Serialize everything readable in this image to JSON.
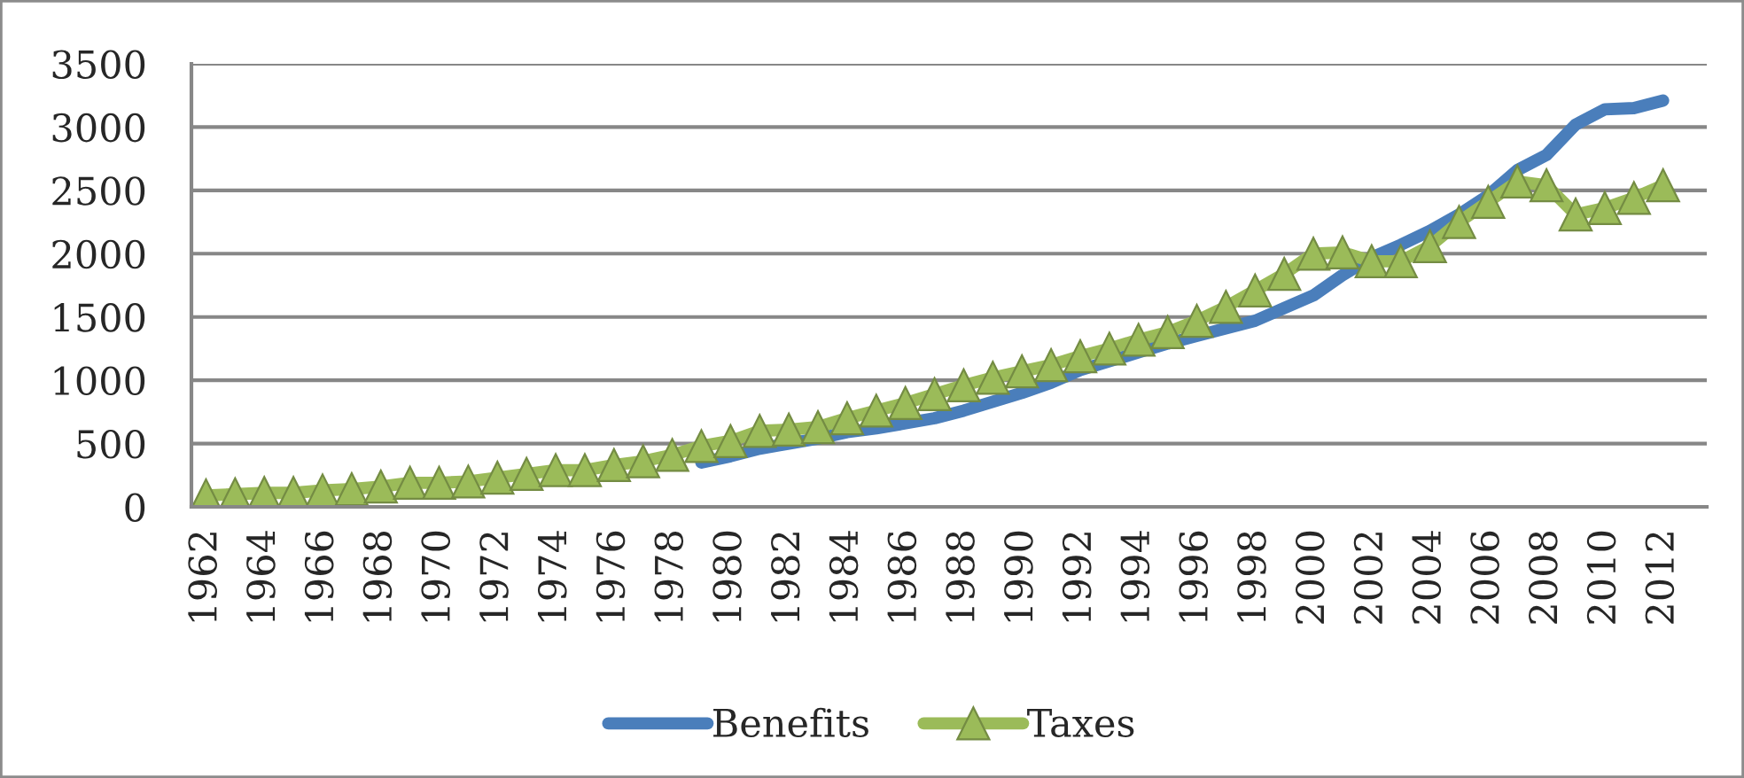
{
  "chart_data": {
    "type": "line",
    "categories": [
      "1962",
      null,
      "1964",
      null,
      "1966",
      null,
      "1968",
      null,
      "1970",
      null,
      "1972",
      null,
      "1974",
      null,
      "1976",
      null,
      "1978",
      null,
      "1980",
      null,
      "1982",
      null,
      "1984",
      null,
      "1986",
      null,
      "1988",
      null,
      "1990",
      null,
      "1992",
      null,
      "1994",
      null,
      "1996",
      null,
      "1998",
      null,
      "2000",
      null,
      "2002",
      null,
      "2004",
      null,
      "2006",
      null,
      "2008",
      null,
      "2010",
      null,
      "2012",
      null
    ],
    "series": [
      {
        "name": "Benefits",
        "color": "#4a7ebb",
        "values": [
          null,
          null,
          null,
          null,
          null,
          null,
          null,
          null,
          null,
          null,
          null,
          null,
          null,
          null,
          null,
          null,
          null,
          350,
          400,
          460,
          500,
          540,
          590,
          620,
          660,
          700,
          760,
          830,
          900,
          980,
          1080,
          1150,
          1220,
          1290,
          1350,
          1410,
          1470,
          1570,
          1670,
          1830,
          1970,
          2070,
          2180,
          2310,
          2460,
          2660,
          2780,
          3020,
          3140,
          3150,
          3210,
          null
        ]
      },
      {
        "name": "Taxes",
        "color": "#9bbb59",
        "marker": "triangle",
        "values": [
          90,
          100,
          110,
          110,
          130,
          140,
          160,
          190,
          190,
          200,
          230,
          260,
          290,
          290,
          330,
          360,
          410,
          480,
          520,
          600,
          610,
          630,
          700,
          760,
          820,
          890,
          960,
          1020,
          1070,
          1120,
          1190,
          1250,
          1320,
          1380,
          1470,
          1580,
          1710,
          1840,
          2000,
          2010,
          1940,
          1940,
          2060,
          2250,
          2410,
          2570,
          2540,
          2310,
          2360,
          2440,
          2540,
          null
        ]
      }
    ],
    "ylim": [
      0,
      3500
    ],
    "yticks": [
      0,
      500,
      1000,
      1500,
      2000,
      2500,
      3000,
      3500
    ],
    "grid": "y",
    "legend": "bottom"
  }
}
